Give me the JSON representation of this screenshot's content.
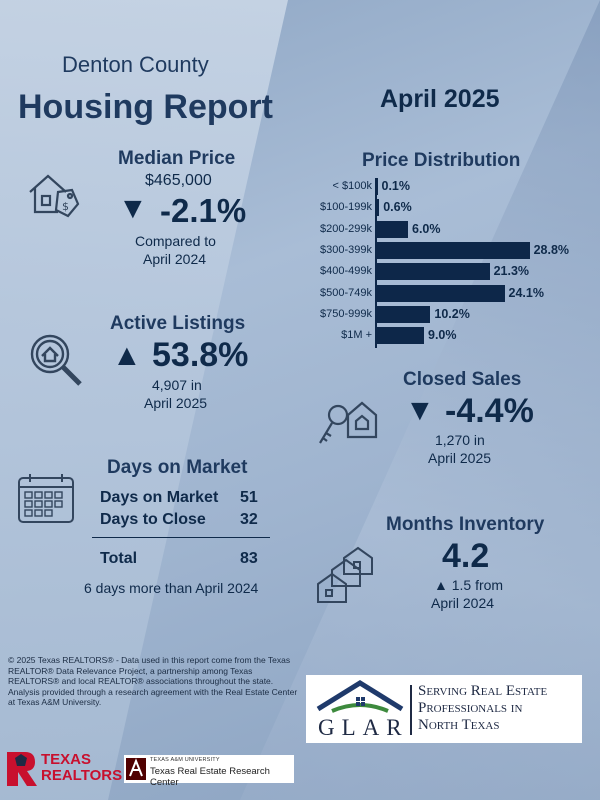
{
  "header": {
    "county": "Denton County",
    "report_title": "Housing Report",
    "period": "April 2025"
  },
  "median_price": {
    "title": "Median Price",
    "value": "$465,000",
    "change": "-2.1%",
    "arrow": "▼",
    "compared_line1": "Compared to",
    "compared_line2": "April 2024"
  },
  "active_listings": {
    "title": "Active Listings",
    "change": "53.8%",
    "arrow": "▲",
    "count_line": "4,907 in",
    "period_line": "April 2025"
  },
  "days_on_market": {
    "title": "Days on Market",
    "rows": [
      {
        "label": "Days on Market",
        "value": "51"
      },
      {
        "label": "Days to Close",
        "value": "32"
      }
    ],
    "total_label": "Total",
    "total_value": "83",
    "note": "6 days more than April 2024"
  },
  "price_distribution": {
    "title": "Price Distribution"
  },
  "chart_data": {
    "type": "bar",
    "title": "Price Distribution",
    "orientation": "horizontal",
    "categories": [
      "< $100k",
      "$100-199k",
      "$200-299k",
      "$300-399k",
      "$400-499k",
      "$500-749k",
      "$750-999k",
      "$1M +"
    ],
    "values": [
      0.1,
      0.6,
      6.0,
      28.8,
      21.3,
      24.1,
      10.2,
      9.0
    ],
    "value_labels": [
      "0.1%",
      "0.6%",
      "6.0%",
      "28.8%",
      "21.3%",
      "24.1%",
      "10.2%",
      "9.0%"
    ],
    "xlabel": "",
    "ylabel": "",
    "xlim": [
      0,
      30
    ],
    "grid": false,
    "bar_color": "#0d2749"
  },
  "closed_sales": {
    "title": "Closed Sales",
    "change": "-4.4%",
    "arrow": "▼",
    "count_line": "1,270 in",
    "period_line": "April 2025"
  },
  "months_inventory": {
    "title": "Months Inventory",
    "value": "4.2",
    "change_line": "▲ 1.5 from",
    "period_line": "April 2024"
  },
  "footer": {
    "disclaimer": "© 2025 Texas REALTORS® - Data used in this report come from the Texas REALTOR® Data Relevance Project, a partnership among Texas REALTORS® and local REALTOR® associations throughout the state. Analysis provided through a research agreement with the Real Estate Center at Texas A&M University.",
    "glar_letters": "GLAR",
    "glar_tagline_1": "Serving Real Estate",
    "glar_tagline_2": "Professionals in",
    "glar_tagline_3": "North Texas",
    "tx_realtors_1": "TEXAS",
    "tx_realtors_2": "REALTORS",
    "tamu_small": "TEXAS A&M UNIVERSITY",
    "tamu_center": "Texas Real Estate Research Center"
  },
  "colors": {
    "navy": "#0d2749",
    "section_title": "#1f3a5f",
    "realtors_red": "#c8102e",
    "aggie_maroon": "#500000"
  }
}
